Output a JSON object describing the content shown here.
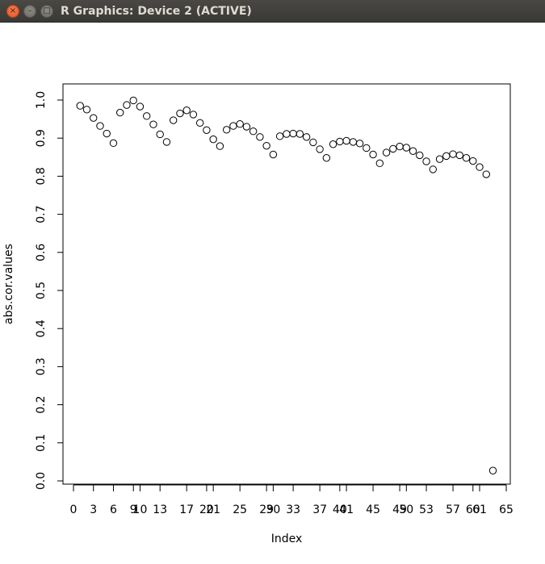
{
  "window": {
    "title": "R Graphics: Device 2 (ACTIVE)",
    "close_glyph": "×",
    "minimize_glyph": "–",
    "maximize_glyph": "□"
  },
  "chart_data": {
    "type": "scatter",
    "title": "",
    "xlabel": "Index",
    "ylabel": "abs.cor.values",
    "xlim": [
      0,
      65
    ],
    "ylim": [
      0,
      1
    ],
    "x_ticks": [
      0,
      3,
      6,
      9,
      10,
      13,
      17,
      20,
      21,
      25,
      29,
      30,
      33,
      37,
      40,
      41,
      45,
      49,
      50,
      53,
      57,
      60,
      61,
      65
    ],
    "y_ticks": [
      "0.0",
      "0.1",
      "0.2",
      "0.3",
      "0.4",
      "0.5",
      "0.6",
      "0.7",
      "0.8",
      "0.9",
      "1.0"
    ],
    "grid": false,
    "marker": "open-circle",
    "x": [
      1,
      2,
      3,
      4,
      5,
      6,
      7,
      8,
      9,
      10,
      11,
      12,
      13,
      14,
      15,
      16,
      17,
      18,
      19,
      20,
      21,
      22,
      23,
      24,
      25,
      26,
      27,
      28,
      29,
      30,
      31,
      32,
      33,
      34,
      35,
      36,
      37,
      38,
      39,
      40,
      41,
      42,
      43,
      44,
      45,
      46,
      47,
      48,
      49,
      50,
      51,
      52,
      53,
      54,
      55,
      56,
      57,
      58,
      59,
      60,
      61,
      62,
      63
    ],
    "y": [
      0.985,
      0.975,
      0.953,
      0.932,
      0.912,
      0.887,
      0.967,
      0.987,
      0.999,
      0.983,
      0.958,
      0.936,
      0.91,
      0.89,
      0.947,
      0.965,
      0.973,
      0.962,
      0.94,
      0.921,
      0.897,
      0.879,
      0.922,
      0.932,
      0.937,
      0.93,
      0.918,
      0.903,
      0.88,
      0.857,
      0.905,
      0.911,
      0.912,
      0.911,
      0.903,
      0.889,
      0.871,
      0.848,
      0.884,
      0.891,
      0.893,
      0.89,
      0.886,
      0.874,
      0.857,
      0.834,
      0.862,
      0.872,
      0.878,
      0.875,
      0.866,
      0.855,
      0.839,
      0.818,
      0.845,
      0.853,
      0.858,
      0.855,
      0.848,
      0.84,
      0.824,
      0.805,
      0.027
    ]
  }
}
